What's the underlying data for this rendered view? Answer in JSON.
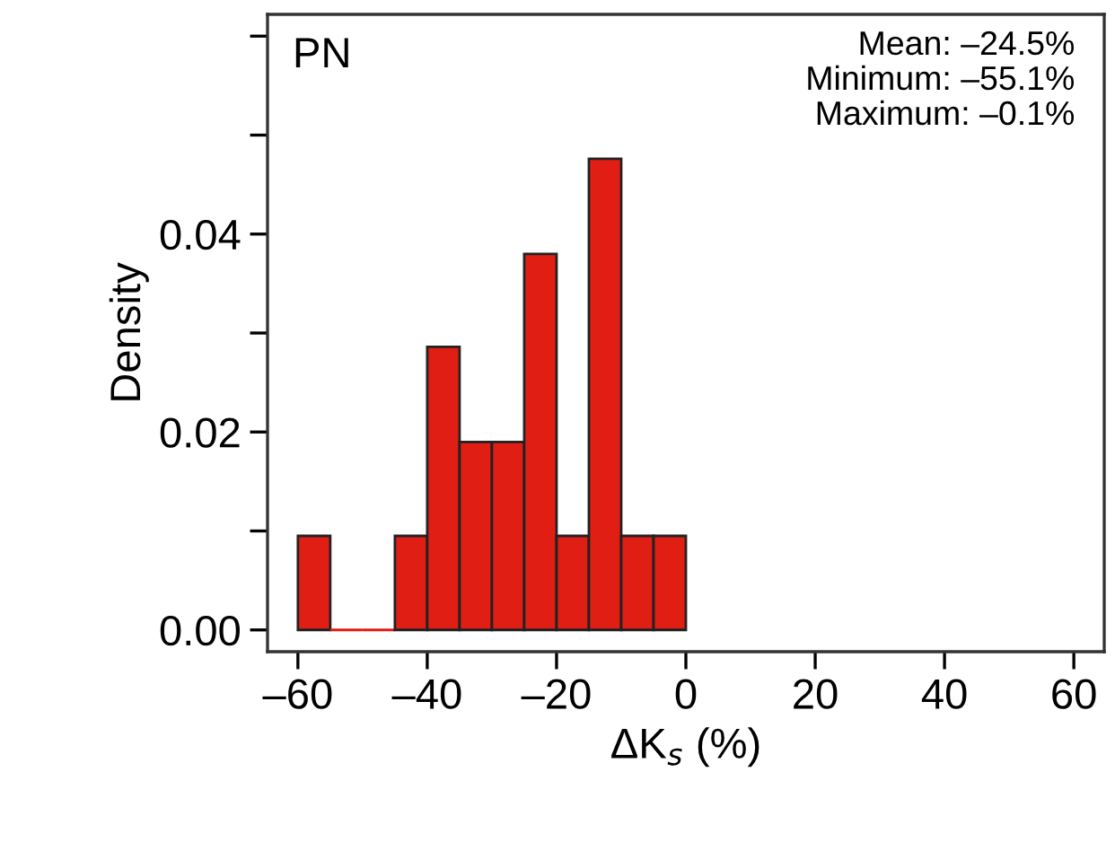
{
  "chart_data": {
    "type": "histogram",
    "bins": [
      -60,
      -55,
      -50,
      -45,
      -40,
      -35,
      -30,
      -25,
      -20,
      -15,
      -10,
      -5,
      0
    ],
    "values": [
      0.0095,
      0,
      0,
      0.0095,
      0.0286,
      0.019,
      0.019,
      0.038,
      0.0095,
      0.0476,
      0.0095,
      0.0095
    ],
    "color": "#e01e14",
    "xlabel": "ΔK$_{s}$ (%)",
    "ylabel": "Density",
    "annotations": [
      "PN",
      "Mean: –24.5%",
      "Minimum: –55.1%",
      "Maximum: –0.1%"
    ],
    "xlim": [
      -64.7,
      64.7
    ],
    "ylim": [
      -0.0022,
      0.0622
    ],
    "xticks": [
      {
        "value": -60,
        "label": "–60"
      },
      {
        "value": -40,
        "label": "–40"
      },
      {
        "value": -20,
        "label": "–20"
      },
      0,
      20,
      40,
      60
    ],
    "yticks": [
      {
        "value": 0,
        "label": "0.00"
      },
      {
        "value": 0.01,
        "label": null
      },
      {
        "value": 0.02,
        "label": "0.02"
      },
      {
        "value": 0.03,
        "label": null
      },
      {
        "value": 0.04,
        "label": "0.04"
      },
      {
        "value": 0.05,
        "label": null
      },
      {
        "value": 0.06,
        "label": null
      }
    ],
    "grid": false,
    "legend": false
  }
}
